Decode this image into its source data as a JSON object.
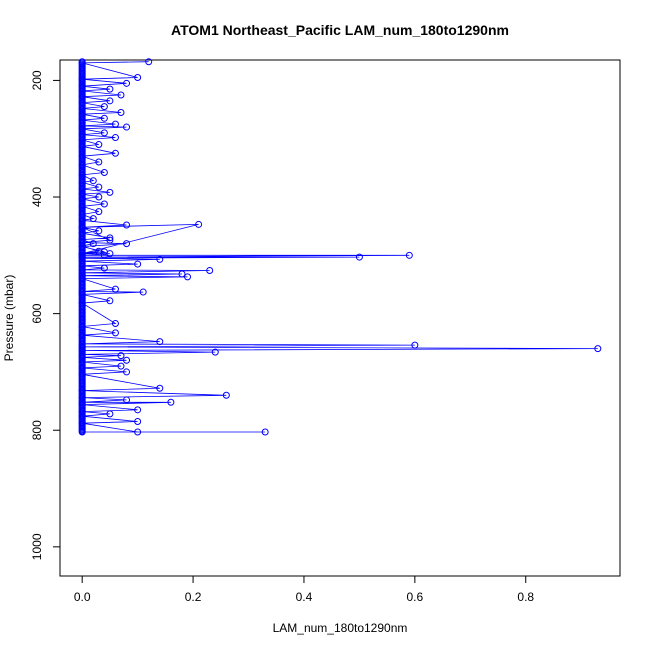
{
  "chart_data": {
    "type": "line",
    "title": "ATOM1 Northeast_Pacific LAM_num_180to1290nm",
    "xlabel": "LAM_num_180to1290nm",
    "ylabel": "Pressure (mbar)",
    "xlim": [
      -0.04,
      0.97
    ],
    "ylim": [
      1050,
      165
    ],
    "y_reversed": true,
    "xticks": [
      "0.0",
      "0.2",
      "0.4",
      "0.6",
      "0.8"
    ],
    "yticks": [
      "200",
      "400",
      "600",
      "800",
      "1000"
    ],
    "xtick_values": [
      0,
      0.2,
      0.4,
      0.6,
      0.8
    ],
    "ytick_values": [
      200,
      400,
      600,
      800,
      1000
    ],
    "color": "#0000ff",
    "grid": false,
    "series": [
      {
        "x": [
          0.12,
          0.0,
          0.1,
          0.0,
          0.08,
          0.0,
          0.05,
          0.0,
          0.07,
          0.0,
          0.05,
          0.0,
          0.04,
          0.0,
          0.07,
          0.0,
          0.04,
          0.0,
          0.06,
          0.0,
          0.08,
          0.0,
          0.04,
          0.0,
          0.06,
          0.0,
          0.03,
          0.0,
          0.06,
          0.0,
          0.03,
          0.0,
          0.04,
          0.0,
          0.02,
          0.0,
          0.03,
          0.0,
          0.05,
          0.0,
          0.03,
          0.0,
          0.04,
          0.0,
          0.03,
          0.0,
          0.02,
          0.0,
          0.08,
          0.0,
          0.03,
          0.0,
          0.05,
          0.0,
          0.02,
          0.0,
          0.03,
          0.0,
          0.21,
          0.0,
          0.05,
          0.0,
          0.08,
          0.0,
          0.04,
          0.0,
          0.05,
          0.0,
          0.04,
          0.0,
          0.59,
          0.0,
          0.5,
          0.0,
          0.14,
          0.0,
          0.1,
          0.0,
          0.04,
          0.0,
          0.23,
          0.0,
          0.18,
          0.0,
          0.19,
          0.0,
          0.06,
          0.0,
          0.11,
          0.0,
          0.05,
          0.0,
          0.06,
          0.0,
          0.06,
          0.0,
          0.14,
          0.0,
          0.6,
          0.0,
          0.93,
          0.0,
          0.24,
          0.0,
          0.07,
          0.0,
          0.08,
          0.0,
          0.07,
          0.0,
          0.08,
          0.0,
          0.14,
          0.0,
          0.26,
          0.0,
          0.08,
          0.0,
          0.16,
          0.0,
          0.1,
          0.0,
          0.05,
          0.0,
          0.1,
          0.0,
          0.1,
          0.0,
          0.33
        ],
        "y": [
          168,
          170,
          195,
          198,
          205,
          210,
          215,
          218,
          225,
          228,
          235,
          238,
          245,
          248,
          255,
          258,
          265,
          268,
          275,
          278,
          280,
          283,
          290,
          293,
          298,
          302,
          310,
          313,
          325,
          330,
          340,
          345,
          358,
          362,
          372,
          375,
          383,
          386,
          392,
          395,
          400,
          403,
          412,
          416,
          425,
          430,
          437,
          440,
          448,
          452,
          458,
          462,
          470,
          473,
          480,
          484,
          493,
          497,
          447,
          452,
          474,
          478,
          480,
          485,
          494,
          497,
          497,
          500,
          500,
          500,
          500,
          503,
          503,
          505,
          507,
          510,
          515,
          518,
          522,
          525,
          526,
          530,
          532,
          535,
          537,
          540,
          558,
          562,
          563,
          567,
          578,
          582,
          617,
          622,
          633,
          637,
          648,
          652,
          654,
          657,
          660,
          663,
          666,
          670,
          672,
          675,
          680,
          683,
          690,
          693,
          700,
          704,
          728,
          732,
          740,
          744,
          748,
          752,
          752,
          756,
          765,
          768,
          772,
          776,
          785,
          788,
          803,
          803,
          803
        ]
      }
    ]
  }
}
